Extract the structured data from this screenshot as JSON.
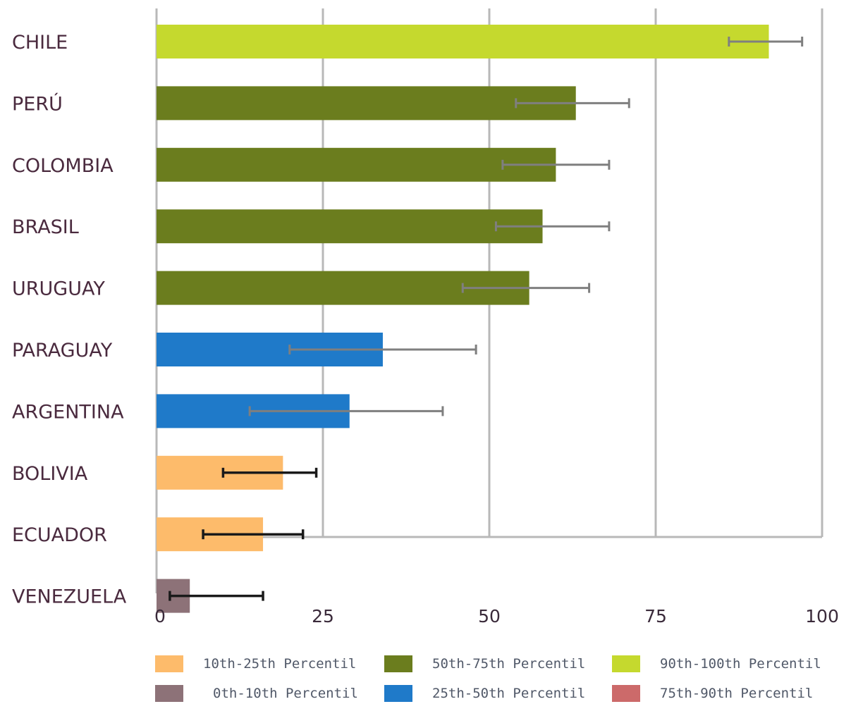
{
  "chart_data": {
    "type": "bar",
    "orientation": "horizontal",
    "categories": [
      "CHILE",
      "PERÚ",
      "COLOMBIA",
      "BRASIL",
      "URUGUAY",
      "PARAGUAY",
      "ARGENTINA",
      "BOLIVIA",
      "ECUADOR",
      "VENEZUELA"
    ],
    "values": [
      92,
      63,
      60,
      58,
      56,
      34,
      29,
      19,
      16,
      5
    ],
    "error_low": [
      86,
      54,
      52,
      51,
      46,
      20,
      14,
      10,
      7,
      2
    ],
    "error_high": [
      97,
      71,
      68,
      68,
      65,
      48,
      43,
      24,
      22,
      16
    ],
    "bar_groups": [
      "90th-100th",
      "50th-75th",
      "50th-75th",
      "50th-75th",
      "50th-75th",
      "25th-50th",
      "25th-50th",
      "10th-25th",
      "10th-25th",
      "0th-10th"
    ],
    "xlim": [
      0,
      100
    ],
    "xticks": [
      0,
      25,
      50,
      75,
      100
    ],
    "grid": true,
    "legend_position": "bottom",
    "legend": [
      {
        "key": "10th-25th",
        "label": "10th-25th Percentil",
        "color": "#fdbb6b"
      },
      {
        "key": "50th-75th",
        "label": "50th-75th Percentil",
        "color": "#6b7d1e"
      },
      {
        "key": "90th-100th",
        "label": "90th-100th Percentil",
        "color": "#c5d92e"
      },
      {
        "key": "0th-10th",
        "label": "0th-10th Percentil",
        "color": "#8d7278"
      },
      {
        "key": "25th-50th",
        "label": "25th-50th Percentil",
        "color": "#1f7ac9"
      },
      {
        "key": "75th-90th",
        "label": "75th-90th Percentil",
        "color": "#cc6a6a"
      }
    ]
  }
}
